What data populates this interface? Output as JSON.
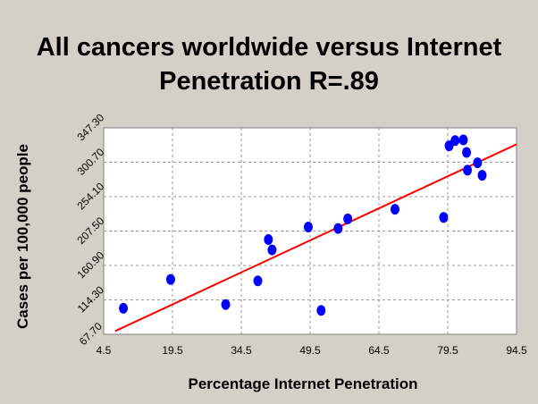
{
  "chart_data": {
    "type": "scatter",
    "title_line1": "All cancers worldwide versus Internet",
    "title_line2": "Penetration  R=.89",
    "xlabel": "Percentage Internet Penetration",
    "ylabel": "Cases per 100,000 people",
    "xlim": [
      4.5,
      94.5
    ],
    "ylim": [
      67.7,
      347.3
    ],
    "x_ticks": [
      "4.5",
      "19.5",
      "34.5",
      "49.5",
      "64.5",
      "79.5",
      "94.5"
    ],
    "y_ticks": [
      "67.70",
      "114.30",
      "160.90",
      "207.50",
      "254.10",
      "300.70",
      "347.30"
    ],
    "grid": true,
    "legend": "none",
    "colors": {
      "points": "#0000ff",
      "trendline": "#ff0000",
      "background": "#d4d0c8",
      "plot": "#ffffff",
      "grid": "#999999"
    },
    "points": [
      {
        "x": 8.8,
        "y": 103
      },
      {
        "x": 19.1,
        "y": 142
      },
      {
        "x": 31.1,
        "y": 108
      },
      {
        "x": 38.1,
        "y": 140
      },
      {
        "x": 40.4,
        "y": 196
      },
      {
        "x": 41.2,
        "y": 182
      },
      {
        "x": 49.1,
        "y": 213
      },
      {
        "x": 51.9,
        "y": 100
      },
      {
        "x": 55.6,
        "y": 211
      },
      {
        "x": 57.7,
        "y": 224
      },
      {
        "x": 68.0,
        "y": 237
      },
      {
        "x": 78.6,
        "y": 226
      },
      {
        "x": 79.8,
        "y": 323
      },
      {
        "x": 81.1,
        "y": 330
      },
      {
        "x": 82.9,
        "y": 331
      },
      {
        "x": 83.6,
        "y": 314
      },
      {
        "x": 83.8,
        "y": 290
      },
      {
        "x": 86.0,
        "y": 300
      },
      {
        "x": 87.0,
        "y": 283
      }
    ],
    "trendline": {
      "x": [
        7.0,
        94.5
      ],
      "y": [
        72,
        325
      ]
    }
  }
}
